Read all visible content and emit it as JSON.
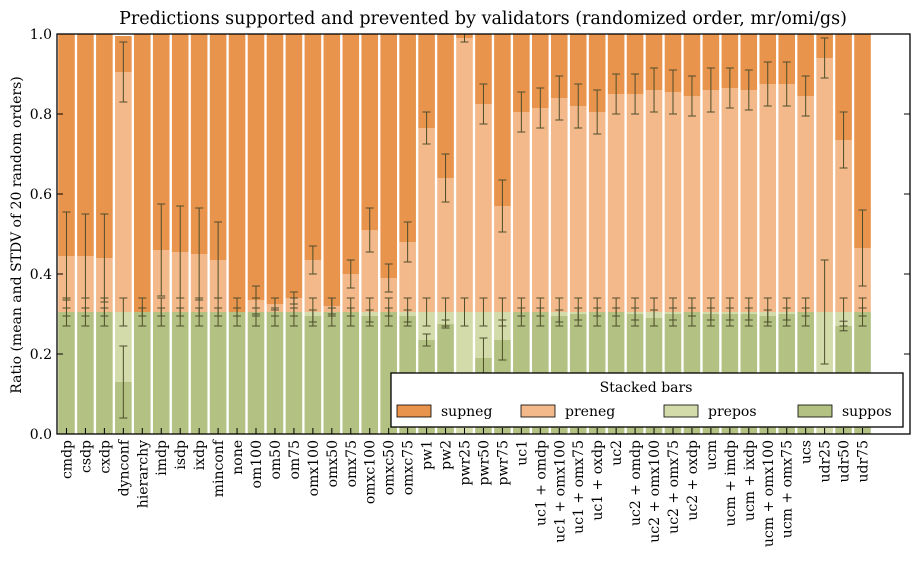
{
  "chart_data": {
    "type": "bar",
    "stacked": true,
    "title": "Predictions supported and prevented by validators (randomized order, mr/omi/gs)",
    "ylabel": "Ratio (mean and STDV of 20 random orders)",
    "xlabel": "",
    "ylim": [
      0,
      1.0
    ],
    "yticks": [
      "0.0",
      "0.2",
      "0.4",
      "0.6",
      "0.8",
      "1.0"
    ],
    "grid": false,
    "legend": {
      "title": "Stacked bars",
      "placement": "lower-right",
      "entries": [
        "supneg",
        "preneg",
        "prepos",
        "suppos"
      ]
    },
    "colors": {
      "supneg": "#e9944d",
      "preneg": "#f3b98a",
      "prepos": "#d3dbaa",
      "suppos": "#b3c182",
      "error": "#4d4d2a"
    },
    "categories": [
      "cmdp",
      "csdp",
      "cxdp",
      "dynconf",
      "hierarchy",
      "imdp",
      "isdp",
      "ixdp",
      "minconf",
      "none",
      "om100",
      "om50",
      "om75",
      "omx100",
      "omx50",
      "omx75",
      "omxc100",
      "omxc50",
      "omxc75",
      "pw1",
      "pw2",
      "pwr25",
      "pwr50",
      "pwr75",
      "uc1",
      "uc1 + omdp",
      "uc1 + omx100",
      "uc1 + omx75",
      "uc1 + oxdp",
      "uc2",
      "uc2 + omdp",
      "uc2 + omx100",
      "uc2 + omx75",
      "uc2 + oxdp",
      "ucm",
      "ucm + imdp",
      "ucm + ixdp",
      "ucm + omx100",
      "ucm + omx75",
      "ucs",
      "udr25",
      "udr50",
      "udr75"
    ],
    "series": [
      {
        "name": "suppos",
        "values": [
          0.305,
          0.305,
          0.305,
          0.13,
          0.305,
          0.305,
          0.305,
          0.305,
          0.305,
          0.305,
          0.305,
          0.305,
          0.305,
          0.295,
          0.305,
          0.305,
          0.295,
          0.305,
          0.295,
          0.235,
          0.275,
          0.0,
          0.19,
          0.235,
          0.305,
          0.305,
          0.295,
          0.3,
          0.305,
          0.305,
          0.3,
          0.29,
          0.3,
          0.305,
          0.3,
          0.3,
          0.3,
          0.295,
          0.3,
          0.305,
          0.0,
          0.27,
          0.305
        ]
      },
      {
        "name": "prepos",
        "values": [
          0.0,
          0.0,
          0.0,
          0.175,
          0.0,
          0.0,
          0.0,
          0.0,
          0.0,
          0.0,
          0.0,
          0.0,
          0.0,
          0.01,
          0.0,
          0.0,
          0.01,
          0.0,
          0.01,
          0.07,
          0.03,
          0.305,
          0.115,
          0.07,
          0.0,
          0.0,
          0.01,
          0.005,
          0.0,
          0.0,
          0.005,
          0.015,
          0.005,
          0.0,
          0.005,
          0.005,
          0.005,
          0.01,
          0.005,
          0.0,
          0.305,
          0.035,
          0.0
        ]
      },
      {
        "name": "preneg",
        "values": [
          0.14,
          0.14,
          0.135,
          0.6,
          0.0,
          0.155,
          0.15,
          0.145,
          0.13,
          0.0,
          0.03,
          0.02,
          0.035,
          0.13,
          0.015,
          0.095,
          0.205,
          0.085,
          0.175,
          0.46,
          0.335,
          0.685,
          0.52,
          0.265,
          0.5,
          0.51,
          0.535,
          0.515,
          0.5,
          0.545,
          0.545,
          0.555,
          0.55,
          0.54,
          0.555,
          0.56,
          0.555,
          0.57,
          0.57,
          0.54,
          0.635,
          0.43,
          0.16
        ]
      },
      {
        "name": "supneg",
        "values": [
          0.555,
          0.555,
          0.56,
          0.09,
          0.695,
          0.54,
          0.545,
          0.55,
          0.565,
          0.695,
          0.665,
          0.675,
          0.66,
          0.565,
          0.68,
          0.6,
          0.49,
          0.61,
          0.52,
          0.235,
          0.36,
          0.01,
          0.175,
          0.43,
          0.195,
          0.185,
          0.16,
          0.18,
          0.195,
          0.15,
          0.15,
          0.14,
          0.145,
          0.155,
          0.14,
          0.135,
          0.14,
          0.125,
          0.125,
          0.155,
          0.06,
          0.265,
          0.535
        ]
      }
    ],
    "error_bars": [
      {
        "series": "suppos",
        "stdv": [
          0.01,
          0.01,
          0.01,
          0.09,
          0.01,
          0.01,
          0.01,
          0.01,
          0.01,
          0.01,
          0.01,
          0.01,
          0.01,
          0.015,
          0.01,
          0.01,
          0.015,
          0.01,
          0.015,
          0.015,
          0.01,
          0.0,
          0.05,
          0.05,
          0.01,
          0.01,
          0.015,
          0.015,
          0.01,
          0.01,
          0.015,
          0.02,
          0.015,
          0.01,
          0.015,
          0.015,
          0.015,
          0.015,
          0.015,
          0.01,
          0.0,
          0.012,
          0.01
        ]
      },
      {
        "series": "prepos",
        "stdv": [
          0.035,
          0.035,
          0.035,
          0.035,
          0.035,
          0.035,
          0.035,
          0.035,
          0.035,
          0.035,
          0.035,
          0.035,
          0.035,
          0.035,
          0.035,
          0.035,
          0.035,
          0.035,
          0.035,
          0.035,
          0.035,
          0.035,
          0.035,
          0.035,
          0.035,
          0.035,
          0.035,
          0.035,
          0.035,
          0.035,
          0.035,
          0.035,
          0.035,
          0.035,
          0.035,
          0.035,
          0.035,
          0.035,
          0.035,
          0.035,
          0.13,
          0.035,
          0.035
        ]
      },
      {
        "series": "preneg",
        "stdv": [
          0.11,
          0.105,
          0.11,
          0.075,
          0.0,
          0.115,
          0.115,
          0.115,
          0.095,
          0.0,
          0.035,
          0.015,
          0.015,
          0.035,
          0.02,
          0.035,
          0.055,
          0.035,
          0.05,
          0.04,
          0.06,
          0.01,
          0.05,
          0.065,
          0.05,
          0.05,
          0.055,
          0.055,
          0.055,
          0.05,
          0.05,
          0.055,
          0.055,
          0.05,
          0.055,
          0.05,
          0.05,
          0.055,
          0.055,
          0.05,
          0.05,
          0.07,
          0.095
        ]
      }
    ]
  }
}
